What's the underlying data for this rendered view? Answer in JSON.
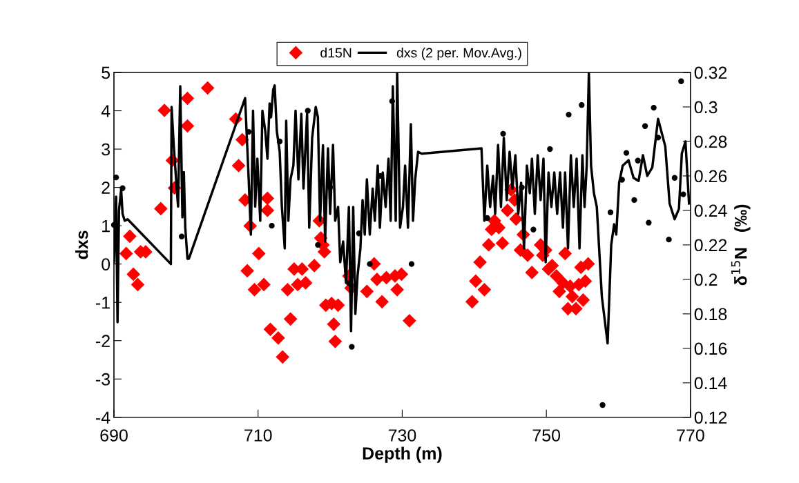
{
  "chart_data": {
    "type": "scatter",
    "xlabel": "Depth (m)",
    "ylabel": "dxs",
    "y2label": "δ$^{15}$N   (‰)",
    "xlim": [
      690,
      770
    ],
    "xticks": [
      690,
      710,
      730,
      750,
      770
    ],
    "ylim": [
      -4,
      5
    ],
    "yticks": [
      -4,
      -3,
      -2,
      -1,
      0,
      1,
      2,
      3,
      4,
      5
    ],
    "y2lim": [
      0.12,
      0.32
    ],
    "y2ticks": [
      0.12,
      0.14,
      0.16,
      0.18,
      0.2,
      0.22,
      0.24,
      0.26,
      0.28,
      0.3,
      0.32
    ],
    "grid": false,
    "legend": "top",
    "series": [
      {
        "name": "d15N",
        "axis": "y2",
        "marker": "diamond",
        "color": "#ff0000",
        "x": [
          691.7,
          692.2,
          692.7,
          693.3,
          693.7,
          694.4,
          696.5,
          697.0,
          698.1,
          698.4,
          700.2,
          700.2,
          703.0,
          706.9,
          707.3,
          707.8,
          708.2,
          708.5,
          708.9,
          709.5,
          710.1,
          710.8,
          711.3,
          711.3,
          711.7,
          712.8,
          713.4,
          714.1,
          714.5,
          715.0,
          715.5,
          716.1,
          716.6,
          717.8,
          718.5,
          718.7,
          719.0,
          719.2,
          719.4,
          720.2,
          720.5,
          720.7,
          721.1,
          722.6,
          722.9,
          725.1,
          726.1,
          726.5,
          727.2,
          727.8,
          729.0,
          729.3,
          729.9,
          731.0,
          739.7,
          740.2,
          740.8,
          741.4,
          742.0,
          742.4,
          742.8,
          743.4,
          743.9,
          744.6,
          745.1,
          745.6,
          745.8,
          746.4,
          746.8,
          747.4,
          748.0,
          749.2,
          749.5,
          749.9,
          750.3,
          750.8,
          751.4,
          751.8,
          752.3,
          752.6,
          753.0,
          753.3,
          753.6,
          754.1,
          754.5,
          754.8,
          755.1,
          755.4,
          755.8
        ],
        "values": [
          0.215,
          0.225,
          0.203,
          0.197,
          0.216,
          0.216,
          0.241,
          0.298,
          0.269,
          0.253,
          0.305,
          0.289,
          0.311,
          0.293,
          0.266,
          0.281,
          0.246,
          0.205,
          0.231,
          0.194,
          0.215,
          0.197,
          0.247,
          0.24,
          0.171,
          0.166,
          0.155,
          0.194,
          0.177,
          0.206,
          0.197,
          0.206,
          0.198,
          0.208,
          0.234,
          0.224,
          0.22,
          0.216,
          0.185,
          0.186,
          0.174,
          0.164,
          0.185,
          0.202,
          0.195,
          0.193,
          0.209,
          0.2,
          0.187,
          0.201,
          0.202,
          0.194,
          0.203,
          0.176,
          0.187,
          0.199,
          0.21,
          0.194,
          0.22,
          0.229,
          0.234,
          0.23,
          0.221,
          0.24,
          0.252,
          0.246,
          0.235,
          0.217,
          0.226,
          0.214,
          0.204,
          0.22,
          0.214,
          0.217,
          0.206,
          0.208,
          0.202,
          0.193,
          0.198,
          0.215,
          0.183,
          0.196,
          0.19,
          0.183,
          0.197,
          0.207,
          0.188,
          0.199,
          0.209
        ]
      },
      {
        "marker": "circle",
        "color": "#000000",
        "x": [
          690.0,
          690.3,
          691.2,
          699.4,
          708.7,
          711.9,
          713.0,
          716.9,
          718.3,
          720.0,
          722.6,
          723.0,
          724.0,
          725.5,
          727.0,
          728.6,
          731.3,
          741.8,
          744.0,
          746.6,
          748.2,
          750.5,
          753.1,
          754.9,
          757.8,
          758.9,
          760.5,
          761.1,
          762.2,
          762.7,
          763.7,
          764.2,
          764.9,
          765.5,
          767.0,
          767.8,
          768.7,
          769.0
        ],
        "values": [
          1.02,
          2.26,
          1.98,
          0.72,
          3.45,
          1.0,
          3.2,
          4.0,
          0.5,
          2.0,
          -0.5,
          -2.16,
          0.8,
          0.0,
          2.3,
          4.25,
          0.0,
          1.2,
          3.4,
          2.0,
          0.9,
          3.0,
          3.9,
          4.15,
          -3.68,
          1.35,
          2.2,
          2.9,
          1.67,
          2.7,
          3.6,
          1.08,
          4.08,
          3.3,
          0.64,
          2.25,
          4.77,
          1.82
        ]
      },
      {
        "name": "dxs (2 per. Mov.Avg.)",
        "type": "line",
        "marker": "none",
        "line_style": "solid",
        "color": "#000000",
        "x": [
          690.0,
          690.3,
          690.5,
          690.7,
          691.0,
          691.2,
          691.5,
          691.9,
          697.9,
          698.0,
          698.3,
          698.7,
          698.9,
          699.2,
          699.5,
          699.7,
          699.9,
          700.2,
          700.4,
          708.2,
          708.7,
          709.0,
          709.3,
          709.6,
          709.9,
          710.3,
          710.6,
          711.0,
          711.3,
          711.6,
          711.8,
          712.1,
          712.3,
          712.6,
          713.0,
          713.3,
          713.7,
          713.9,
          714.2,
          714.5,
          714.9,
          715.2,
          715.6,
          716.0,
          716.3,
          716.8,
          717.1,
          717.5,
          718.0,
          718.3,
          718.6,
          719.0,
          719.3,
          719.7,
          720.0,
          720.4,
          720.7,
          721.1,
          721.4,
          721.8,
          722.2,
          722.6,
          722.9,
          723.2,
          723.5,
          723.8,
          724.2,
          724.5,
          724.8,
          725.1,
          725.5,
          725.9,
          726.2,
          726.6,
          726.9,
          727.3,
          727.7,
          728.1,
          728.4,
          728.7,
          729.1,
          729.3,
          729.7,
          730.1,
          730.4,
          730.8,
          731.2,
          731.5,
          731.8,
          732.2,
          732.7,
          741.0,
          741.4,
          741.8,
          742.2,
          742.6,
          742.9,
          743.3,
          743.7,
          744.1,
          744.5,
          744.9,
          745.3,
          745.7,
          746.1,
          746.5,
          746.9,
          747.3,
          747.7,
          748.0,
          748.4,
          748.8,
          749.2,
          749.6,
          749.9,
          750.3,
          750.7,
          751.1,
          751.5,
          751.9,
          752.3,
          752.6,
          753.0,
          753.4,
          753.8,
          754.2,
          754.6,
          755.0,
          755.3,
          755.6,
          755.9,
          756.2,
          756.6,
          757.0,
          757.7,
          758.5,
          759.0,
          759.4,
          759.7,
          760.1,
          760.6,
          761.4,
          762.1,
          762.8,
          763.4,
          764.0,
          764.7,
          765.5,
          766.5,
          767.1,
          767.8,
          768.4,
          768.8,
          769.3,
          769.8
        ],
        "values": [
          0.05,
          1.76,
          -1.52,
          1.4,
          1.94,
          1.31,
          1.13,
          1.17,
          0.0,
          4.1,
          3.1,
          2.0,
          1.5,
          4.64,
          1.22,
          2.4,
          0.95,
          0.14,
          0.14,
          4.33,
          2.2,
          0.77,
          4.0,
          1.5,
          2.75,
          1.13,
          4.0,
          3.47,
          2.75,
          4.19,
          3.83,
          4.55,
          4.66,
          3.47,
          2.93,
          1.5,
          0.41,
          3.74,
          1.13,
          2.21,
          2.57,
          4.0,
          2.21,
          3.92,
          1.97,
          3.92,
          0.95,
          3.29,
          4.1,
          3.83,
          1.13,
          3.1,
          0.59,
          3.02,
          1.31,
          3.11,
          1.13,
          1.49,
          0.05,
          0.59,
          -0.49,
          1.49,
          -1.75,
          1.49,
          -1.3,
          -0.31,
          0.41,
          1.67,
          0.77,
          2.21,
          0.77,
          1.97,
          1.13,
          2.57,
          0.95,
          2.39,
          1.49,
          2.75,
          1.13,
          4.64,
          1.13,
          5.0,
          0.95,
          1.49,
          2.57,
          0.95,
          3.65,
          1.13,
          2.21,
          2.93,
          2.88,
          3.02,
          1.13,
          2.57,
          1.49,
          2.3,
          1.31,
          3.11,
          1.49,
          3.29,
          1.67,
          2.93,
          1.97,
          2.84,
          1.31,
          2.12,
          0.41,
          2.57,
          1.85,
          2.75,
          1.31,
          2.84,
          1.67,
          2.75,
          0.05,
          2.39,
          1.49,
          2.39,
          1.31,
          2.39,
          0.95,
          2.39,
          0.41,
          2.84,
          1.49,
          2.75,
          0.41,
          2.84,
          1.49,
          2.57,
          5.0,
          2.57,
          1.85,
          1.49,
          -0.85,
          -2.07,
          0.5,
          1.04,
          0.77,
          2.12,
          2.57,
          2.71,
          2.25,
          2.17,
          2.84,
          2.3,
          2.52,
          3.79,
          3.07,
          1.58,
          1.17,
          1.44,
          2.89,
          3.2,
          1.58
        ]
      }
    ]
  }
}
